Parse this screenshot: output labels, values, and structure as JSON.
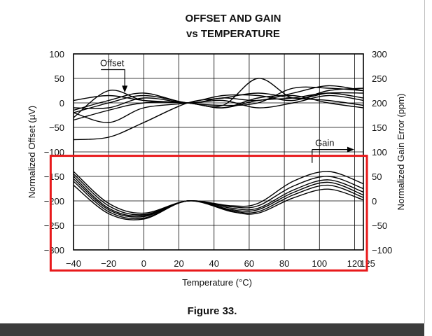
{
  "colors": {
    "highlight": "#e8191b",
    "line": "#000000",
    "grid": "#000000"
  },
  "figure_caption": "Figure 33.",
  "chart_data": {
    "type": "line",
    "title": "OFFSET AND GAIN",
    "subtitle": "vs TEMPERATURE",
    "xlabel": "Temperature (°C)",
    "ylabel_left": "Normalized Offset (µV)",
    "ylabel_right": "Normalized Gain Error (ppm)",
    "xlim": [
      -40,
      125
    ],
    "ylim_left": [
      -300,
      100
    ],
    "ylim_right": [
      -100,
      300
    ],
    "x_ticks": [
      -40,
      -20,
      0,
      20,
      40,
      60,
      80,
      100,
      120
    ],
    "x_tick_labels": [
      "−40",
      "−20",
      "0",
      "20",
      "40",
      "60",
      "80",
      "100",
      "120"
    ],
    "x_end_label": "125",
    "y_left_ticks": [
      100,
      50,
      0,
      -50,
      -100,
      -150,
      -200,
      -250,
      -300
    ],
    "y_left_tick_labels": [
      "100",
      "50",
      "0",
      "−50",
      "−100",
      "−150",
      "−200",
      "−250",
      "−300"
    ],
    "y_right_ticks": [
      300,
      250,
      200,
      150,
      100,
      50,
      0,
      -50,
      -100
    ],
    "y_right_tick_labels": [
      "300",
      "250",
      "200",
      "150",
      "100",
      "50",
      "0",
      "−50",
      "−100"
    ],
    "grid": true,
    "annotations": [
      {
        "text": "Offset",
        "x": -18,
        "y": 75,
        "arrow_to_x": -18,
        "arrow_to_y": 28,
        "axis": "left"
      },
      {
        "text": "Gain",
        "x": 103,
        "y": 112,
        "arrow_to_x": 119,
        "arrow_to_y": 109,
        "axis": "right"
      }
    ],
    "highlight_box": {
      "x0": -53,
      "x1": 127,
      "y0": 92,
      "y1": -142,
      "axis": "right"
    },
    "offset_series": [
      {
        "axis": "left",
        "x": [
          -40,
          -20,
          0,
          25,
          45,
          65,
          85,
          105,
          125
        ],
        "y": [
          -30,
          25,
          5,
          0,
          -5,
          50,
          10,
          20,
          20
        ]
      },
      {
        "axis": "left",
        "x": [
          -40,
          -20,
          0,
          25,
          45,
          65,
          85,
          105,
          125
        ],
        "y": [
          -15,
          5,
          20,
          0,
          10,
          5,
          20,
          35,
          25
        ]
      },
      {
        "axis": "left",
        "x": [
          -40,
          -20,
          0,
          25,
          45,
          65,
          85,
          105,
          125
        ],
        "y": [
          -20,
          0,
          15,
          0,
          -5,
          0,
          30,
          30,
          25
        ]
      },
      {
        "axis": "left",
        "x": [
          -40,
          -20,
          0,
          25,
          45,
          65,
          85,
          105,
          125
        ],
        "y": [
          -10,
          -10,
          10,
          0,
          5,
          -10,
          0,
          15,
          5
        ]
      },
      {
        "axis": "left",
        "x": [
          -40,
          -20,
          0,
          25,
          45,
          65,
          85,
          105,
          125
        ],
        "y": [
          -35,
          -15,
          0,
          0,
          -10,
          10,
          15,
          0,
          -10
        ]
      },
      {
        "axis": "left",
        "x": [
          -40,
          -20,
          0,
          25,
          45,
          65,
          85,
          105,
          125
        ],
        "y": [
          -75,
          -70,
          -40,
          0,
          10,
          20,
          10,
          5,
          -5
        ]
      },
      {
        "axis": "left",
        "x": [
          -40,
          -20,
          0,
          25,
          45,
          65,
          85,
          105,
          125
        ],
        "y": [
          -20,
          -40,
          -10,
          0,
          15,
          15,
          5,
          25,
          30
        ]
      },
      {
        "axis": "left",
        "x": [
          -40,
          -20,
          0,
          25,
          45,
          65,
          85,
          105,
          125
        ],
        "y": [
          5,
          15,
          5,
          0,
          -10,
          5,
          10,
          20,
          10
        ]
      }
    ],
    "gain_series": [
      {
        "axis": "left",
        "x": [
          -40,
          -20,
          0,
          25,
          50,
          65,
          85,
          105,
          125
        ],
        "y": [
          -140,
          -205,
          -225,
          -200,
          -210,
          -205,
          -160,
          -140,
          -165
        ]
      },
      {
        "axis": "left",
        "x": [
          -40,
          -20,
          0,
          25,
          50,
          65,
          85,
          105,
          125
        ],
        "y": [
          -145,
          -210,
          -228,
          -200,
          -212,
          -210,
          -170,
          -150,
          -175
        ]
      },
      {
        "axis": "left",
        "x": [
          -40,
          -20,
          0,
          25,
          50,
          65,
          85,
          105,
          125
        ],
        "y": [
          -150,
          -215,
          -230,
          -200,
          -215,
          -215,
          -178,
          -157,
          -182
        ]
      },
      {
        "axis": "left",
        "x": [
          -40,
          -20,
          0,
          25,
          50,
          65,
          85,
          105,
          125
        ],
        "y": [
          -155,
          -218,
          -232,
          -200,
          -218,
          -218,
          -183,
          -162,
          -188
        ]
      },
      {
        "axis": "left",
        "x": [
          -40,
          -20,
          0,
          25,
          50,
          65,
          85,
          105,
          125
        ],
        "y": [
          -160,
          -222,
          -235,
          -200,
          -220,
          -222,
          -188,
          -168,
          -193
        ]
      },
      {
        "axis": "left",
        "x": [
          -40,
          -20,
          0,
          25,
          50,
          65,
          85,
          105,
          125
        ],
        "y": [
          -168,
          -226,
          -237,
          -200,
          -222,
          -225,
          -194,
          -176,
          -198
        ]
      }
    ]
  }
}
